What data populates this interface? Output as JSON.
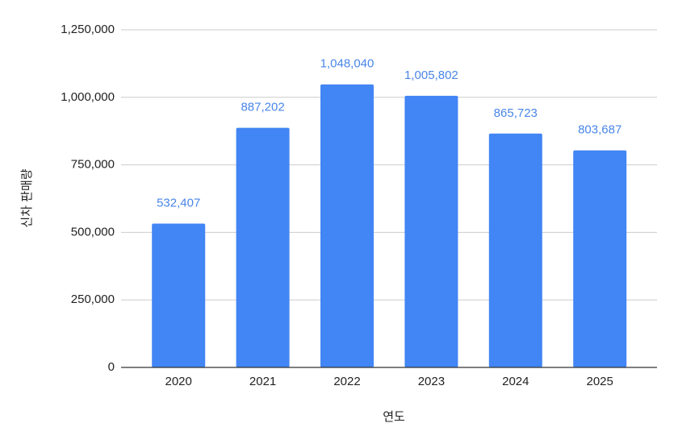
{
  "chart_data": {
    "type": "bar",
    "x_label": "연도",
    "y_label": "신차 판매량",
    "categories": [
      "2020",
      "2021",
      "2022",
      "2023",
      "2024",
      "2025"
    ],
    "values": [
      532407,
      887202,
      1048040,
      1005802,
      865723,
      803687
    ],
    "value_labels": [
      "532,407",
      "887,202",
      "1,048,040",
      "1,005,802",
      "865,723",
      "803,687"
    ],
    "color": "#4285f4",
    "ylim": [
      0,
      1250000
    ],
    "yticks": [
      0,
      {
        "value": 250000,
        "label": "250,000"
      },
      {
        "value": 500000,
        "label": "500,000"
      },
      {
        "value": 750000,
        "label": "750,000"
      },
      {
        "value": 1000000,
        "label": "1,000,000"
      },
      {
        "value": 1250000,
        "label": "1,250,000"
      }
    ],
    "grid": true
  }
}
